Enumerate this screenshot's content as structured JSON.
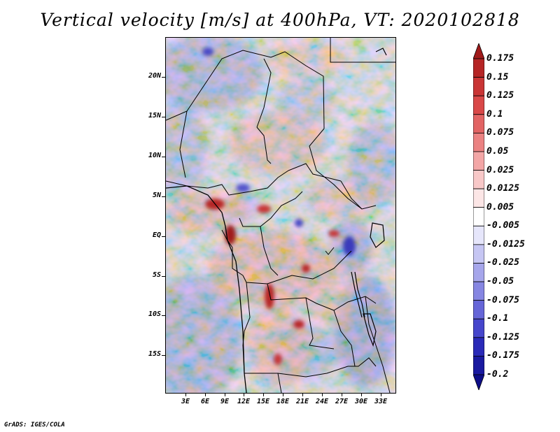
{
  "title": "Vertical velocity [m/s] at 400hPa, VT: 2020102818",
  "footer": "GrADS: IGES/COLA",
  "map": {
    "lon_range": [
      0,
      36
    ],
    "lat_range": [
      -20,
      25
    ],
    "lat_labels": [
      "20N",
      "15N",
      "10N",
      "5N",
      "EQ",
      "5S",
      "10S",
      "15S"
    ],
    "lat_values": [
      20,
      15,
      10,
      5,
      0,
      -5,
      -10,
      -15
    ],
    "lon_labels": [
      "3E",
      "6E",
      "9E",
      "12E",
      "15E",
      "18E",
      "21E",
      "24E",
      "27E",
      "30E",
      "33E"
    ],
    "lon_values": [
      3,
      6,
      9,
      12,
      15,
      18,
      21,
      24,
      27,
      30,
      33
    ]
  },
  "colorbar": {
    "labels": [
      "0.175",
      "0.15",
      "0.125",
      "0.1",
      "0.075",
      "0.05",
      "0.025",
      "0.0125",
      "0.005",
      "-0.005",
      "-0.0125",
      "-0.025",
      "-0.05",
      "-0.075",
      "-0.1",
      "-0.125",
      "-0.175",
      "-0.2"
    ],
    "colors": [
      "#a01a1a",
      "#b52525",
      "#c93535",
      "#d94848",
      "#e26464",
      "#eb8282",
      "#f3a6a6",
      "#f8c8c8",
      "#fce6e6",
      "#ffffff",
      "#e6e6fb",
      "#c6c6f3",
      "#a6a6eb",
      "#8686e2",
      "#6666d8",
      "#4646cc",
      "#2a2ab8",
      "#1a1aa0",
      "#0e0e88"
    ]
  }
}
